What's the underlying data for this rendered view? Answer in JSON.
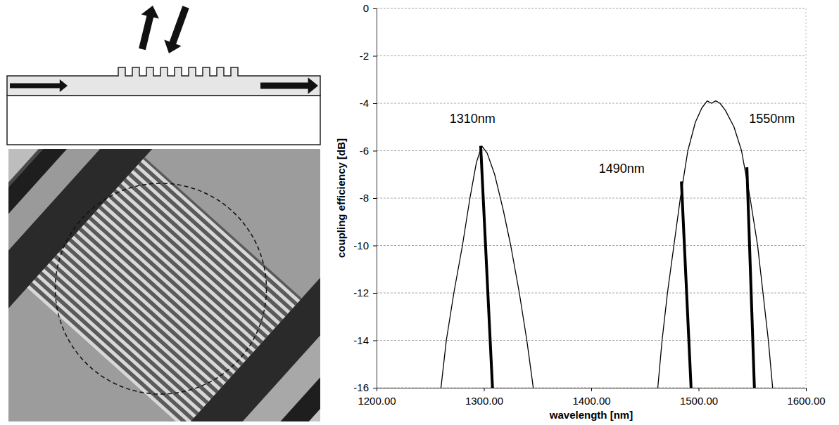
{
  "chart_data": {
    "type": "line",
    "x_label": "wavelength [nm]",
    "y_label": "coupling efficiency [dB]",
    "xlim": [
      1200,
      1600
    ],
    "xticks": [
      {
        "value": 1200,
        "label": "1200.00"
      },
      {
        "value": 1300,
        "label": "1300.00"
      },
      {
        "value": 1400,
        "label": "1400.00"
      },
      {
        "value": 1500,
        "label": "1500.00"
      },
      {
        "value": 1600,
        "label": "1600.00"
      }
    ],
    "ylim": [
      -16,
      0
    ],
    "yticks": [
      0,
      -2,
      -4,
      -6,
      -8,
      -10,
      -12,
      -14,
      -16
    ],
    "grid": true,
    "series": [
      {
        "color": "#000000",
        "line_style": "thin",
        "x": [
          1260,
          1265,
          1272,
          1280,
          1287,
          1293,
          1298,
          1303,
          1310,
          1318,
          1325,
          1333,
          1340,
          1346
        ],
        "values": [
          -16,
          -14,
          -12,
          -10,
          -8,
          -6.5,
          -5.8,
          -6.1,
          -7,
          -8.5,
          -10,
          -12,
          -14,
          -16
        ]
      },
      {
        "color": "#000000",
        "line_style": "thin",
        "x": [
          1462,
          1466,
          1471,
          1477,
          1483,
          1490,
          1497,
          1503,
          1508,
          1512,
          1516,
          1520,
          1525,
          1533,
          1540,
          1548,
          1555,
          1560,
          1565,
          1569
        ],
        "values": [
          -16,
          -14,
          -12,
          -10,
          -8,
          -6,
          -4.8,
          -4.2,
          -3.9,
          -4.0,
          -3.9,
          -4.0,
          -4.3,
          -5,
          -6,
          -8,
          -10,
          -12,
          -14,
          -16
        ]
      },
      {
        "color": "#000000",
        "line_style": "bold",
        "x": [
          1297,
          1308
        ],
        "values": [
          -5.8,
          -16
        ]
      },
      {
        "color": "#000000",
        "line_style": "bold",
        "x": [
          1484,
          1493
        ],
        "values": [
          -7.3,
          -16
        ]
      },
      {
        "color": "#000000",
        "line_style": "bold",
        "x": [
          1545,
          1552
        ],
        "values": [
          -6.7,
          -16
        ]
      }
    ],
    "annotations": [
      {
        "text": "1310nm",
        "x": 1268,
        "y": -4.7
      },
      {
        "text": "1490nm",
        "x": 1407,
        "y": -6.8
      },
      {
        "text": "1550nm",
        "x": 1547,
        "y": -4.7
      }
    ]
  }
}
